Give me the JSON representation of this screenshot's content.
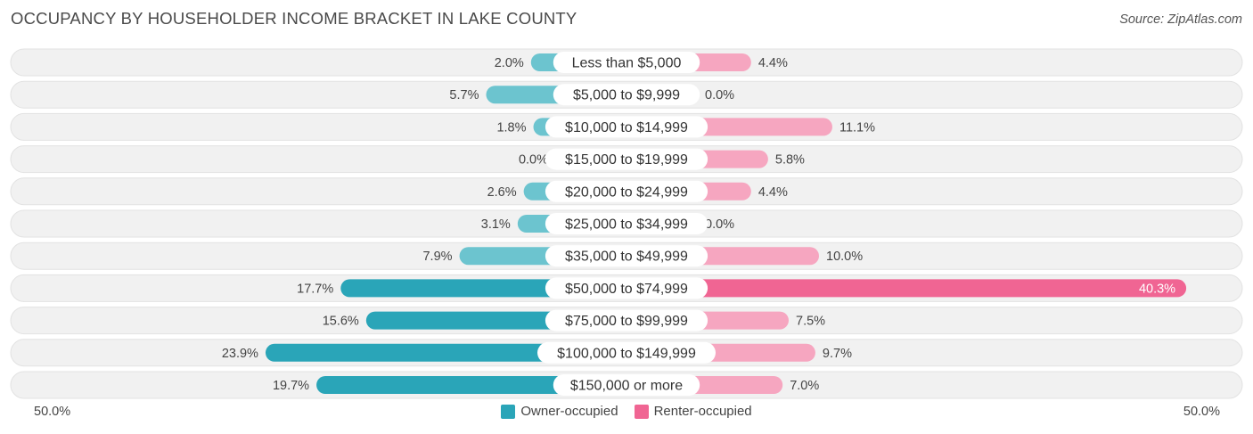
{
  "header": {
    "title": "OCCUPANCY BY HOUSEHOLDER INCOME BRACKET IN LAKE COUNTY",
    "source": "Source: ZipAtlas.com"
  },
  "axis": {
    "left_label": "50.0%",
    "right_label": "50.0%"
  },
  "legend": {
    "owner_label": "Owner-occupied",
    "renter_label": "Renter-occupied"
  },
  "colors": {
    "owner": "#6cc4cf",
    "owner_strong": "#2aa5b8",
    "renter": "#f6a6c0",
    "renter_strong": "#f06593",
    "track": "#f1f1f1"
  },
  "chart_data": {
    "type": "bar",
    "orientation": "horizontal-diverging",
    "categories": [
      "Less than $5,000",
      "$5,000 to $9,999",
      "$10,000 to $14,999",
      "$15,000 to $19,999",
      "$20,000 to $24,999",
      "$25,000 to $34,999",
      "$35,000 to $49,999",
      "$50,000 to $74,999",
      "$75,000 to $99,999",
      "$100,000 to $149,999",
      "$150,000 or more"
    ],
    "series": [
      {
        "name": "Owner-occupied",
        "values": [
          2.0,
          5.7,
          1.8,
          0.0,
          2.6,
          3.1,
          7.9,
          17.7,
          15.6,
          23.9,
          19.7
        ],
        "labels": [
          "2.0%",
          "5.7%",
          "1.8%",
          "0.0%",
          "2.6%",
          "3.1%",
          "7.9%",
          "17.7%",
          "15.6%",
          "23.9%",
          "19.7%"
        ]
      },
      {
        "name": "Renter-occupied",
        "values": [
          4.4,
          0.0,
          11.1,
          5.8,
          4.4,
          0.0,
          10.0,
          40.3,
          7.5,
          9.7,
          7.0
        ],
        "labels": [
          "4.4%",
          "0.0%",
          "11.1%",
          "5.8%",
          "4.4%",
          "0.0%",
          "10.0%",
          "40.3%",
          "7.5%",
          "9.7%",
          "7.0%"
        ]
      }
    ],
    "xlim": [
      -50,
      50
    ],
    "legend_position": "bottom-center"
  }
}
